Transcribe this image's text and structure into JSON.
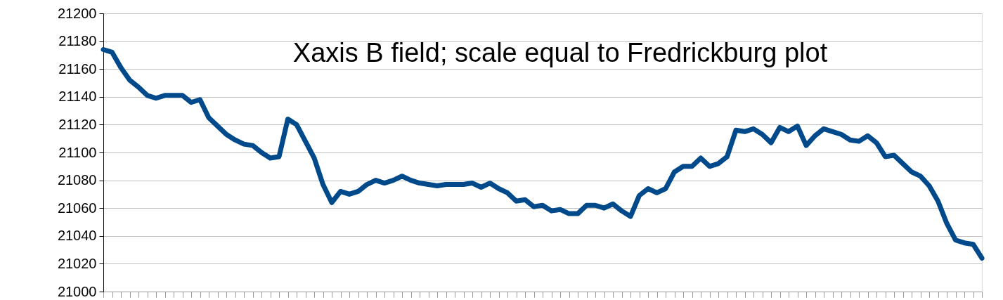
{
  "chart_data": {
    "type": "line",
    "title": "Xaxis B field; scale equal to Fredrickburg plot",
    "categories": [
      null,
      null,
      null,
      null,
      null,
      null,
      null,
      null,
      null,
      null,
      null,
      null,
      null,
      null,
      null,
      null,
      null,
      null,
      null,
      null,
      null,
      null,
      null,
      null,
      null,
      null,
      null,
      null,
      null,
      null,
      null,
      null,
      null,
      null,
      null,
      null,
      null,
      null,
      null,
      null,
      null,
      null,
      null,
      null,
      null,
      null,
      null,
      null,
      null,
      null,
      null,
      null,
      null,
      null,
      null,
      null,
      null,
      null,
      null,
      null,
      null,
      null,
      null,
      null,
      null,
      null,
      null,
      null,
      null,
      null,
      null,
      null,
      null,
      null,
      null,
      null,
      null,
      null,
      null,
      null,
      null,
      null,
      null,
      null,
      null,
      null,
      null,
      null,
      null,
      null,
      null,
      null,
      null,
      null,
      null,
      null,
      null,
      null,
      null,
      null,
      null
    ],
    "series": [
      {
        "color": "#004a8b",
        "values": [
          21174,
          21172,
          21161,
          21152,
          21147,
          21141,
          21139,
          21141,
          21141,
          21141,
          21136,
          21138,
          21125,
          21119,
          21113,
          21109,
          21106,
          21105,
          21100,
          21096,
          21097,
          21124,
          21120,
          21108,
          21096,
          21077,
          21064,
          21072,
          21070,
          21072,
          21077,
          21080,
          21078,
          21080,
          21083,
          21080,
          21078,
          21077,
          21076,
          21077,
          21077,
          21077,
          21078,
          21075,
          21078,
          21074,
          21071,
          21065,
          21066,
          21061,
          21062,
          21058,
          21059,
          21056,
          21056,
          21062,
          21062,
          21060,
          21063,
          21058,
          21054,
          21069,
          21074,
          21071,
          21074,
          21086,
          21090,
          21090,
          21096,
          21090,
          21092,
          21097,
          21116,
          21115,
          21117,
          21113,
          21107,
          21118,
          21115,
          21119,
          21105,
          21112,
          21117,
          21115,
          21113,
          21109,
          21108,
          21112,
          21107,
          21097,
          21098,
          21092,
          21086,
          21083,
          21076,
          21065,
          21049,
          21037,
          21035,
          21034,
          21024
        ]
      }
    ],
    "ylim": [
      21000,
      21200
    ],
    "yticks": [
      21000,
      21020,
      21040,
      21060,
      21080,
      21100,
      21120,
      21140,
      21160,
      21180,
      21200
    ],
    "grid": "y",
    "tick_labels": "y",
    "marker": "none",
    "line_style": "solid"
  }
}
